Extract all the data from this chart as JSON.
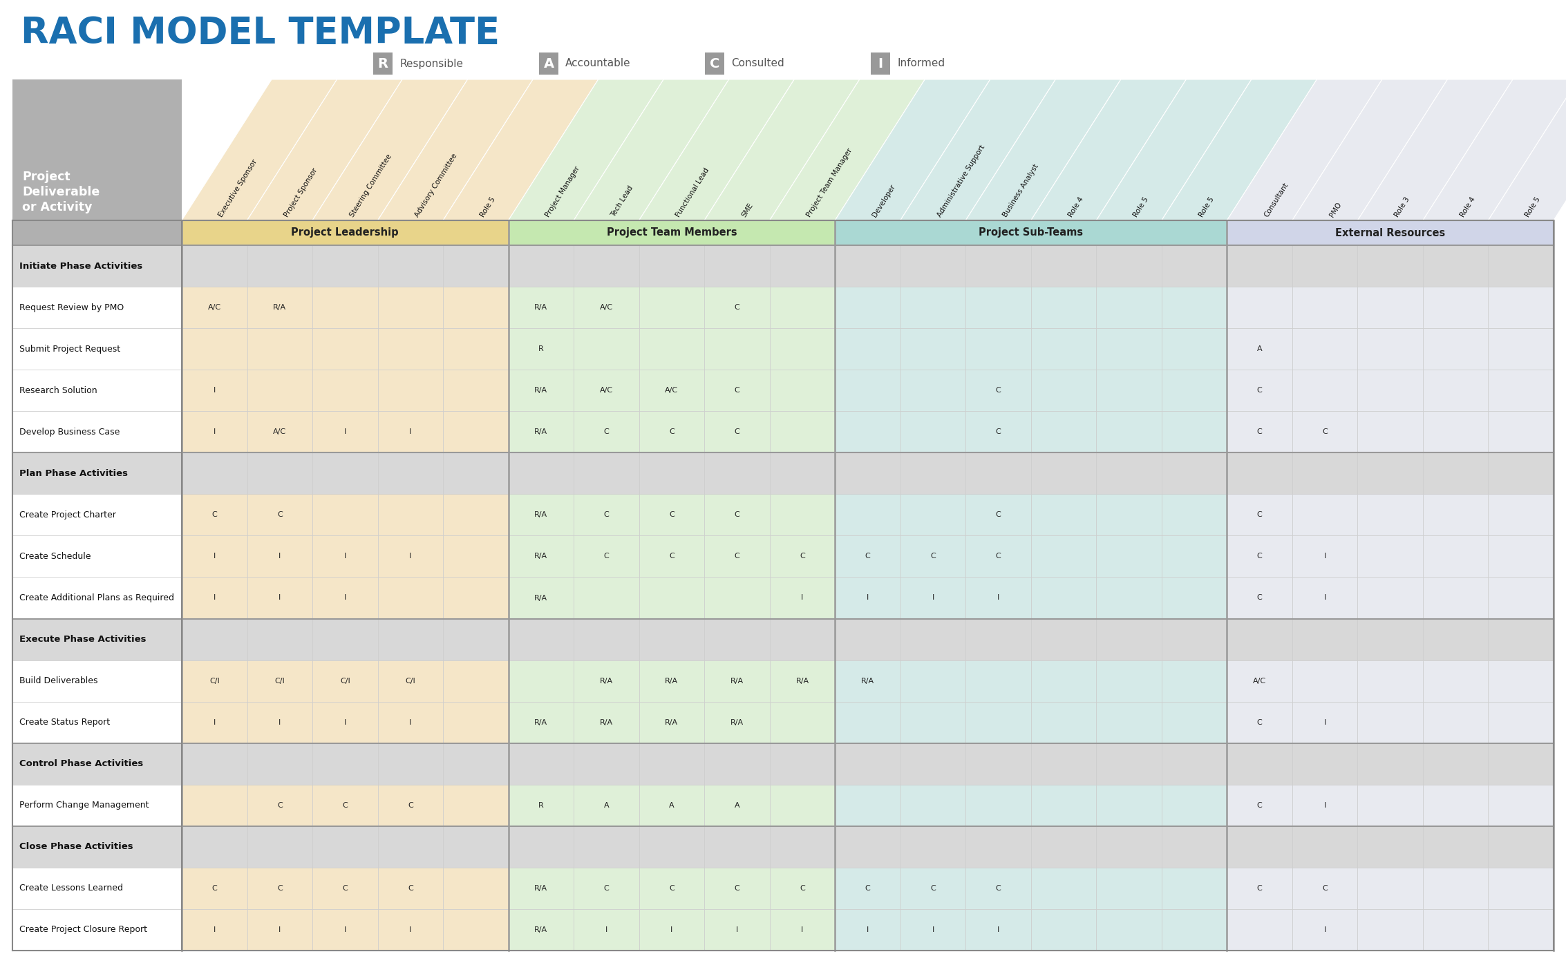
{
  "title": "RACI MODEL TEMPLATE",
  "title_color": "#1a6faf",
  "legend_items": [
    {
      "letter": "R",
      "label": "Responsible"
    },
    {
      "letter": "A",
      "label": "Accountable"
    },
    {
      "letter": "C",
      "label": "Consulted"
    },
    {
      "letter": "I",
      "label": "Informed"
    }
  ],
  "col_groups": [
    {
      "label": "Project Leadership",
      "start": 0,
      "end": 4,
      "color": "#f5e6c8",
      "label_color": "#e8d48a"
    },
    {
      "label": "Project Team Members",
      "start": 5,
      "end": 9,
      "color": "#dff0d8",
      "label_color": "#c5e8b0"
    },
    {
      "label": "Project Sub-Teams",
      "start": 10,
      "end": 15,
      "color": "#d5eae8",
      "label_color": "#aad8d3"
    },
    {
      "label": "External Resources",
      "start": 16,
      "end": 20,
      "color": "#e8eaf0",
      "label_color": "#d0d5e8"
    }
  ],
  "col_headers": [
    "Executive Sponsor",
    "Project Sponsor",
    "Steering Committee",
    "Advisory Committee",
    "Role 5",
    "Project Manager",
    "Tech Lead",
    "Functional Lead",
    "SME",
    "Project Team Manager",
    "Developer",
    "Administrative Support",
    "Business Analyst",
    "Role 4",
    "Role 5",
    "Role 5",
    "Consultant",
    "PMO",
    "Role 3",
    "Role 4",
    "Role 5"
  ],
  "col_header_colors": [
    "#f5e6c8",
    "#f5e6c8",
    "#f5e6c8",
    "#f5e6c8",
    "#f5e6c8",
    "#dff0d8",
    "#dff0d8",
    "#dff0d8",
    "#dff0d8",
    "#dff0d8",
    "#d5eae8",
    "#d5eae8",
    "#d5eae8",
    "#d5eae8",
    "#d5eae8",
    "#d5eae8",
    "#e8eaf0",
    "#e8eaf0",
    "#e8eaf0",
    "#e8eaf0",
    "#e8eaf0"
  ],
  "row_label_header": "Project\nDeliverable\nor Activity",
  "rows": [
    {
      "label": "Initiate Phase Activities",
      "is_phase": true,
      "values": [
        "",
        "",
        "",
        "",
        "",
        "",
        "",
        "",
        "",
        "",
        "",
        "",
        "",
        "",
        "",
        "",
        "",
        "",
        "",
        "",
        ""
      ]
    },
    {
      "label": "Request Review by PMO",
      "is_phase": false,
      "values": [
        "A/C",
        "R/A",
        "",
        "",
        "",
        "R/A",
        "A/C",
        "",
        "C",
        "",
        "",
        "",
        "",
        "",
        "",
        "",
        "",
        "",
        "",
        "",
        ""
      ]
    },
    {
      "label": "Submit Project Request",
      "is_phase": false,
      "values": [
        "",
        "",
        "",
        "",
        "",
        "R",
        "",
        "",
        "",
        "",
        "",
        "",
        "",
        "",
        "",
        "",
        "A",
        "",
        "",
        "",
        ""
      ]
    },
    {
      "label": "Research Solution",
      "is_phase": false,
      "values": [
        "I",
        "",
        "",
        "",
        "",
        "R/A",
        "A/C",
        "A/C",
        "C",
        "",
        "",
        "",
        "C",
        "",
        "",
        "",
        "C",
        "",
        "",
        "",
        ""
      ]
    },
    {
      "label": "Develop Business Case",
      "is_phase": false,
      "values": [
        "I",
        "A/C",
        "I",
        "I",
        "",
        "R/A",
        "C",
        "C",
        "C",
        "",
        "",
        "",
        "C",
        "",
        "",
        "",
        "C",
        "C",
        "",
        "",
        ""
      ]
    },
    {
      "label": "Plan Phase Activities",
      "is_phase": true,
      "values": [
        "",
        "",
        "",
        "",
        "",
        "",
        "",
        "",
        "",
        "",
        "",
        "",
        "",
        "",
        "",
        "",
        "",
        "",
        "",
        "",
        ""
      ]
    },
    {
      "label": "Create Project Charter",
      "is_phase": false,
      "values": [
        "C",
        "C",
        "",
        "",
        "",
        "R/A",
        "C",
        "C",
        "C",
        "",
        "",
        "",
        "C",
        "",
        "",
        "",
        "C",
        "",
        "",
        "",
        ""
      ]
    },
    {
      "label": "Create Schedule",
      "is_phase": false,
      "values": [
        "I",
        "I",
        "I",
        "I",
        "",
        "R/A",
        "C",
        "C",
        "C",
        "C",
        "C",
        "C",
        "C",
        "",
        "",
        "",
        "C",
        "I",
        "",
        "",
        ""
      ]
    },
    {
      "label": "Create Additional Plans as Required",
      "is_phase": false,
      "values": [
        "I",
        "I",
        "I",
        "",
        "",
        "R/A",
        "",
        "",
        "",
        "I",
        "I",
        "I",
        "I",
        "",
        "",
        "",
        "C",
        "I",
        "",
        "",
        ""
      ]
    },
    {
      "label": "Execute Phase Activities",
      "is_phase": true,
      "values": [
        "",
        "",
        "",
        "",
        "",
        "",
        "",
        "",
        "",
        "",
        "",
        "",
        "",
        "",
        "",
        "",
        "",
        "",
        "",
        "",
        ""
      ]
    },
    {
      "label": "Build Deliverables",
      "is_phase": false,
      "values": [
        "C/I",
        "C/I",
        "C/I",
        "C/I",
        "",
        "",
        "R/A",
        "R/A",
        "R/A",
        "R/A",
        "R/A",
        "",
        "",
        "",
        "",
        "",
        "A/C",
        "",
        "",
        "",
        ""
      ]
    },
    {
      "label": "Create Status Report",
      "is_phase": false,
      "values": [
        "I",
        "I",
        "I",
        "I",
        "",
        "R/A",
        "R/A",
        "R/A",
        "R/A",
        "",
        "",
        "",
        "",
        "",
        "",
        "",
        "C",
        "I",
        "",
        "",
        ""
      ]
    },
    {
      "label": "Control Phase Activities",
      "is_phase": true,
      "values": [
        "",
        "",
        "",
        "",
        "",
        "",
        "",
        "",
        "",
        "",
        "",
        "",
        "",
        "",
        "",
        "",
        "",
        "",
        "",
        "",
        ""
      ]
    },
    {
      "label": "Perform Change Management",
      "is_phase": false,
      "values": [
        "",
        "C",
        "C",
        "C",
        "",
        "R",
        "A",
        "A",
        "A",
        "",
        "",
        "",
        "",
        "",
        "",
        "",
        "C",
        "I",
        "",
        "",
        ""
      ]
    },
    {
      "label": "Close Phase Activities",
      "is_phase": true,
      "values": [
        "",
        "",
        "",
        "",
        "",
        "",
        "",
        "",
        "",
        "",
        "",
        "",
        "",
        "",
        "",
        "",
        "",
        "",
        "",
        "",
        ""
      ]
    },
    {
      "label": "Create Lessons Learned",
      "is_phase": false,
      "values": [
        "C",
        "C",
        "C",
        "C",
        "",
        "R/A",
        "C",
        "C",
        "C",
        "C",
        "C",
        "C",
        "C",
        "",
        "",
        "",
        "C",
        "C",
        "",
        "",
        ""
      ]
    },
    {
      "label": "Create Project Closure Report",
      "is_phase": false,
      "values": [
        "I",
        "I",
        "I",
        "I",
        "",
        "R/A",
        "I",
        "I",
        "I",
        "I",
        "I",
        "I",
        "I",
        "",
        "",
        "",
        "",
        "I",
        "",
        "",
        ""
      ]
    }
  ],
  "phase_row_bg": "#d8d8d8",
  "header_area_bg": "#aaaaaa",
  "grid_color": "#cccccc",
  "legend_box_color": "#999999"
}
